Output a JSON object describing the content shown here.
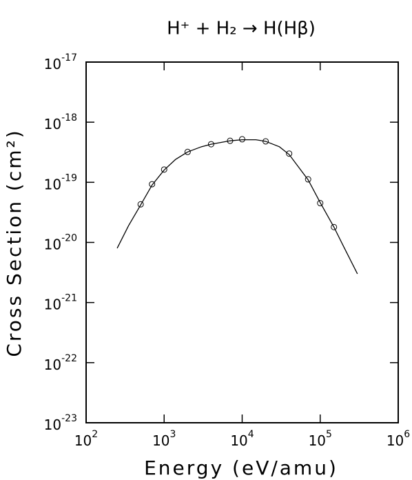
{
  "chart_data": {
    "type": "scatter",
    "title": "H⁺ + H₂ → H(Hβ)",
    "x_label": "Energy (eV/amu)",
    "y_label": "Cross Section (cm²)",
    "x_scale": "log",
    "y_scale": "log",
    "xlim": [
      100,
      1000000
    ],
    "ylim": [
      1e-23,
      1e-17
    ],
    "xticks": [
      {
        "value": 100,
        "label": "10^2"
      },
      {
        "value": 1000,
        "label": "10^3"
      },
      {
        "value": 10000,
        "label": "10^4"
      },
      {
        "value": 100000,
        "label": "10^5"
      },
      {
        "value": 1000000,
        "label": "10^6"
      }
    ],
    "yticks": [
      {
        "value": 1e-23,
        "label": "10^-23"
      },
      {
        "value": 1e-22,
        "label": "10^-22"
      },
      {
        "value": 1e-21,
        "label": "10^-21"
      },
      {
        "value": 1e-20,
        "label": "10^-20"
      },
      {
        "value": 1e-19,
        "label": "10^-19"
      },
      {
        "value": 1e-18,
        "label": "10^-18"
      },
      {
        "value": 1e-17,
        "label": "10^-17"
      }
    ],
    "series": [
      {
        "kind": "markers",
        "color": "#000000",
        "x": [
          500,
          700,
          1000,
          2000,
          4000,
          7000,
          10000,
          20000,
          40000,
          70000,
          100000,
          150000
        ],
        "values": [
          4.3e-20,
          9.3e-20,
          1.63e-19,
          3.2e-19,
          4.3e-19,
          4.9e-19,
          5.2e-19,
          4.8e-19,
          3e-19,
          1.12e-19,
          4.5e-20,
          1.8e-20
        ]
      },
      {
        "kind": "line",
        "color": "#000000",
        "x": [
          250,
          350,
          500,
          700,
          1000,
          1400,
          2000,
          3000,
          4000,
          7000,
          10000,
          15000,
          20000,
          30000,
          40000,
          70000,
          100000,
          150000,
          200000,
          300000
        ],
        "values": [
          8e-21,
          1.9e-20,
          4.2e-20,
          9e-20,
          1.6e-19,
          2.4e-19,
          3.2e-19,
          3.9e-19,
          4.3e-19,
          4.9e-19,
          5.1e-19,
          5.1e-19,
          4.8e-19,
          3.9e-19,
          2.9e-19,
          1.1e-19,
          4.6e-20,
          1.8e-20,
          8.5e-21,
          3e-21
        ]
      }
    ]
  }
}
